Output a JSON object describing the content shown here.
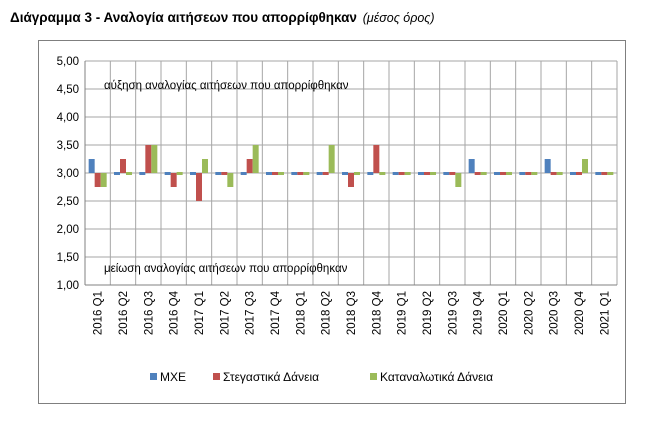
{
  "title": {
    "main": "Διάγραμμα 3 - Αναλογία αιτήσεων που απορρίφθηκαν",
    "sub": "(μέσος όρος)"
  },
  "chart_data": {
    "type": "bar",
    "categories": [
      "2016 Q1",
      "2016 Q2",
      "2016 Q3",
      "2016 Q4",
      "2017 Q1",
      "2017 Q2",
      "2017 Q3",
      "2017 Q4",
      "2018 Q1",
      "2018 Q2",
      "2018 Q3",
      "2018 Q4",
      "2019 Q1",
      "2019 Q2",
      "2019 Q3",
      "2019 Q4",
      "2020 Q1",
      "2020 Q2",
      "2020 Q3",
      "2020 Q4",
      "2021 Q1"
    ],
    "series": [
      {
        "name": "ΜΧΕ",
        "color": "#4f81bd",
        "values": [
          3.25,
          3.0,
          3.0,
          3.0,
          3.0,
          3.0,
          3.0,
          3.0,
          3.0,
          3.0,
          3.0,
          3.0,
          3.0,
          3.0,
          3.0,
          3.25,
          3.0,
          3.0,
          3.25,
          3.0,
          3.0
        ]
      },
      {
        "name": "Στεγαστικά Δάνεια",
        "color": "#c0504d",
        "values": [
          2.75,
          3.25,
          3.5,
          2.75,
          2.5,
          3.0,
          3.25,
          3.0,
          3.0,
          3.0,
          2.75,
          3.5,
          3.0,
          3.0,
          3.0,
          3.0,
          3.0,
          3.0,
          3.0,
          3.0,
          3.0
        ]
      },
      {
        "name": "Καταναλωτικά Δάνεια",
        "color": "#9bbb59",
        "values": [
          2.75,
          3.0,
          3.5,
          3.0,
          3.25,
          2.75,
          3.5,
          3.0,
          3.0,
          3.5,
          3.0,
          3.0,
          3.0,
          3.0,
          2.75,
          3.0,
          3.0,
          3.0,
          3.0,
          3.25,
          3.0
        ]
      }
    ],
    "ylim": [
      1.0,
      5.0
    ],
    "yticks": [
      "1,00",
      "1,50",
      "2,00",
      "2,50",
      "3,00",
      "3,50",
      "4,00",
      "4,50",
      "5,00"
    ],
    "baseline": 3.0,
    "annotations": {
      "top": "αύξηση αναλογίας αιτήσεων που απορρίφθηκαν",
      "bottom": "μείωση αναλογίας αιτήσεων που απορρίφθηκαν"
    },
    "grid": true,
    "legend": "bottom"
  }
}
